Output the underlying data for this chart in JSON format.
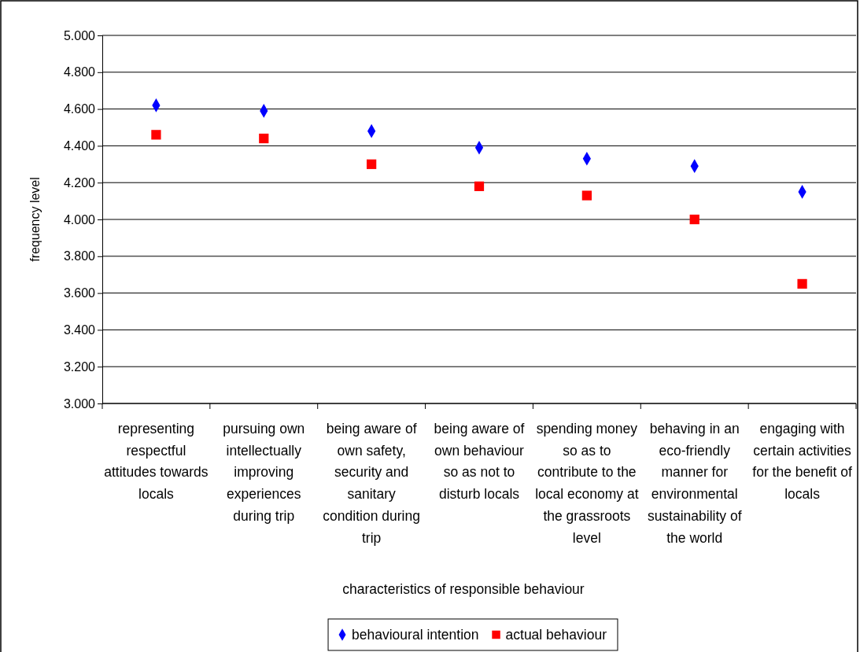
{
  "chart_data": {
    "type": "scatter",
    "xlabel": "characteristics of responsible behaviour",
    "ylabel": "frequency level",
    "categories": [
      "representing respectful attitudes towards locals",
      "pursuing own intellectually improving experiences during trip",
      "being aware of own safety, security and sanitary condition during trip",
      "being aware of own behaviour so as not to disturb locals",
      "spending money so as to contribute to the local economy at the grassroots level",
      "behaving in an eco-friendly manner for environmental sustainability of the world",
      "engaging with certain activities for the benefit of locals"
    ],
    "series": [
      {
        "name": "behavioural intention",
        "color": "#0000ff",
        "marker": "diamond",
        "values": [
          4.62,
          4.59,
          4.48,
          4.39,
          4.33,
          4.29,
          4.15
        ]
      },
      {
        "name": "actual behaviour",
        "color": "#ff0000",
        "marker": "square",
        "values": [
          4.46,
          4.44,
          4.3,
          4.18,
          4.13,
          4.0,
          3.65
        ]
      }
    ],
    "ylim": [
      3,
      5
    ],
    "yticks": [
      {
        "value": 3,
        "label": "3.000"
      },
      {
        "value": 3.2,
        "label": "3.200"
      },
      {
        "value": 3.4,
        "label": "3.400"
      },
      {
        "value": 3.6,
        "label": "3.600"
      },
      {
        "value": 3.8,
        "label": "3.800"
      },
      {
        "value": 4,
        "label": "4.000"
      },
      {
        "value": 4.2,
        "label": "4.200"
      },
      {
        "value": 4.4,
        "label": "4.400"
      },
      {
        "value": 4.6,
        "label": "4.600"
      },
      {
        "value": 4.8,
        "label": "4.800"
      },
      {
        "value": 5,
        "label": "5.000"
      }
    ],
    "grid": "y",
    "legend": "bottom"
  }
}
